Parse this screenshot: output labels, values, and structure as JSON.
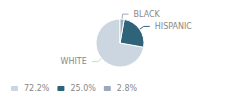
{
  "chart_data": {
    "type": "pie",
    "categories": [
      "WHITE",
      "HISPANIC",
      "BLACK"
    ],
    "values": [
      72.2,
      25.0,
      2.8
    ],
    "value_labels": [
      "72.2%",
      "25.0%",
      "2.8%"
    ],
    "colors": [
      "#ccd6e0",
      "#2e637a",
      "#9aaabb"
    ],
    "legend": "lower left"
  }
}
